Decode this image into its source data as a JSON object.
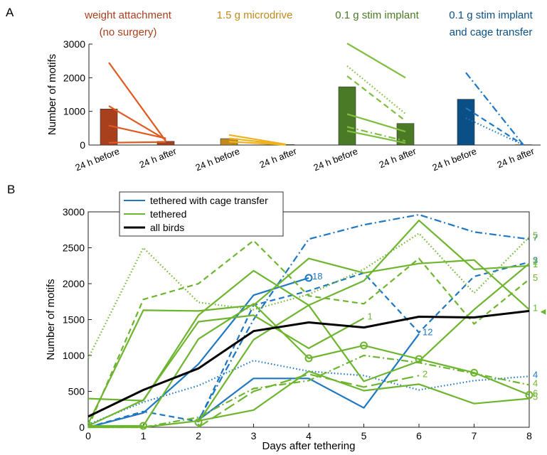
{
  "figure": {
    "panel_a_label": "A",
    "panel_b_label": "B",
    "colors": {
      "weight": "#a8401e",
      "weight_light": "#e05a20",
      "microdrive": "#c08a1c",
      "microdrive_light": "#efb21f",
      "stim": "#4a7a25",
      "stim_light": "#7fbe3f",
      "cage": "#0b4f87",
      "cage_light": "#1f78c1",
      "tethered": "#6eb52f",
      "all": "#000000"
    }
  },
  "chart_data": [
    {
      "type": "bar",
      "panel": "A",
      "ylabel": "Number of motifs",
      "ylim": [
        0,
        3000
      ],
      "yticks": [
        0,
        1000,
        2000,
        3000
      ],
      "groups": [
        {
          "title": [
            "weight attachment",
            "(no surgery)"
          ],
          "color_key": "weight",
          "categories": [
            "24 h before",
            "24 h after"
          ],
          "bar_values": [
            1070,
            110
          ],
          "lines": [
            {
              "before": 2450,
              "after": 120,
              "style": "solid"
            },
            {
              "before": 1160,
              "after": 160,
              "style": "solid"
            },
            {
              "before": 580,
              "after": 200,
              "style": "solid"
            },
            {
              "before": 70,
              "after": 90,
              "style": "solid"
            }
          ]
        },
        {
          "title": [
            "1.5 g microdrive"
          ],
          "color_key": "microdrive",
          "categories": [
            "24 h before",
            "24 h after"
          ],
          "bar_values": [
            190,
            15
          ],
          "lines": [
            {
              "before": 300,
              "after": 20,
              "style": "solid"
            },
            {
              "before": 200,
              "after": 10,
              "style": "solid"
            },
            {
              "before": 100,
              "after": 5,
              "style": "solid"
            }
          ]
        },
        {
          "title": [
            "0.1 g stim implant"
          ],
          "color_key": "stim",
          "categories": [
            "24 h before",
            "24 h after"
          ],
          "bar_values": [
            1730,
            640
          ],
          "lines": [
            {
              "before": 3020,
              "after": 2000,
              "style": "solid"
            },
            {
              "before": 2350,
              "after": 930,
              "style": "dotted"
            },
            {
              "before": 2050,
              "after": 720,
              "style": "dashed"
            },
            {
              "before": 920,
              "after": 400,
              "style": "solid"
            },
            {
              "before": 540,
              "after": 120,
              "style": "dashdot"
            },
            {
              "before": 420,
              "after": 60,
              "style": "solid"
            }
          ]
        },
        {
          "title": [
            "0.1 g stim implant",
            "and cage transfer"
          ],
          "color_key": "cage",
          "categories": [
            "24 h before",
            "24 h after"
          ],
          "bar_values": [
            1360,
            10
          ],
          "lines": [
            {
              "before": 2150,
              "after": 0,
              "style": "dashdot"
            },
            {
              "before": 1100,
              "after": 0,
              "style": "dashed"
            },
            {
              "before": 800,
              "after": 0,
              "style": "dotted"
            }
          ]
        }
      ]
    },
    {
      "type": "line",
      "panel": "B",
      "xlabel": "Days after tethering",
      "ylabel": "Number of motifs",
      "xlim": [
        0,
        8
      ],
      "ylim": [
        0,
        3000
      ],
      "xticks": [
        0,
        1,
        2,
        3,
        4,
        5,
        6,
        7,
        8
      ],
      "yticks": [
        0,
        500,
        1000,
        1500,
        2000,
        2500,
        3000
      ],
      "legend": {
        "placement": "top-left",
        "entries": [
          {
            "label": "tethered with cage transfer",
            "color_key": "cage_light"
          },
          {
            "label": "tethered",
            "color_key": "tethered"
          },
          {
            "label": "all birds",
            "color_key": "all"
          }
        ]
      },
      "series": [
        {
          "group": "all",
          "style": "solid",
          "width": 3,
          "x": [
            0,
            1,
            2,
            3,
            4,
            5,
            6,
            7,
            8
          ],
          "y": [
            150,
            520,
            820,
            1340,
            1460,
            1390,
            1540,
            1530,
            1620
          ]
        },
        {
          "group": "cage",
          "style": "solid",
          "x": [
            0,
            1,
            2,
            3,
            4
          ],
          "y": [
            0,
            200,
            880,
            1840,
            2080
          ],
          "end_marker": "circle",
          "end_label": "18"
        },
        {
          "group": "cage",
          "style": "solid",
          "x": [
            2,
            3,
            4,
            5,
            6
          ],
          "y": [
            100,
            680,
            680,
            270,
            1300
          ],
          "end_label": "12"
        },
        {
          "group": "cage",
          "style": "dashdot",
          "x": [
            2,
            3,
            4,
            5,
            6,
            7,
            8
          ],
          "y": [
            100,
            1500,
            2620,
            2820,
            2960,
            2720,
            2620
          ],
          "end_label": "7"
        },
        {
          "group": "cage",
          "style": "dashed",
          "x": [
            0,
            1,
            2,
            3,
            4,
            5,
            6,
            7,
            8
          ],
          "y": [
            0,
            220,
            80,
            1700,
            1900,
            2150,
            1320,
            2100,
            2300
          ],
          "end_label": "3"
        },
        {
          "group": "cage",
          "style": "dotted",
          "x": [
            0,
            1,
            2,
            3,
            4,
            5,
            6,
            7,
            8
          ],
          "y": [
            40,
            350,
            580,
            930,
            780,
            720,
            520,
            650,
            710
          ],
          "end_label": "4"
        },
        {
          "group": "tethered",
          "style": "dotted",
          "x": [
            0,
            1,
            2,
            3,
            4,
            5,
            6,
            7,
            8
          ],
          "y": [
            960,
            2500,
            1740,
            1640,
            1850,
            2200,
            2700,
            1870,
            2650
          ],
          "end_label": "5"
        },
        {
          "group": "tethered",
          "style": "dashed",
          "x": [
            0,
            1,
            2,
            3,
            4,
            5,
            6,
            7,
            8
          ],
          "y": [
            0,
            1780,
            2000,
            2600,
            1830,
            1720,
            2350,
            1440,
            2060
          ],
          "end_label": "5"
        },
        {
          "group": "tethered",
          "style": "solid",
          "x": [
            0,
            1,
            2,
            3,
            4,
            5,
            6,
            7,
            8
          ],
          "y": [
            400,
            370,
            1560,
            2180,
            1700,
            2040,
            2880,
            2200,
            2250
          ],
          "end_label": "1"
        },
        {
          "group": "tethered",
          "style": "solid",
          "x": [
            0,
            1,
            2,
            3,
            4,
            5,
            6,
            7,
            8
          ],
          "y": [
            50,
            1630,
            1620,
            1700,
            2350,
            2150,
            2280,
            2330,
            1640
          ],
          "end_label": "1"
        },
        {
          "group": "tethered",
          "style": "solid",
          "x": [
            0,
            1,
            2,
            3,
            4,
            5
          ],
          "y": [
            20,
            380,
            1470,
            1560,
            1100,
            1520
          ],
          "end_label": "1"
        },
        {
          "group": "tethered",
          "style": "solid",
          "x": [
            0,
            1,
            2,
            3,
            4,
            5,
            6,
            7,
            8
          ],
          "y": [
            20,
            20,
            1230,
            1720,
            960,
            1140,
            950,
            760,
            450
          ],
          "markers": [
            1,
            4,
            5,
            6,
            7,
            8
          ],
          "end_label": "6"
        },
        {
          "group": "tethered",
          "style": "solid",
          "x": [
            2,
            3,
            4,
            5,
            6,
            7,
            8
          ],
          "y": [
            70,
            1220,
            1700,
            640,
            920,
            1640,
            2280
          ],
          "markers": [
            2
          ],
          "end_label": "2"
        },
        {
          "group": "tethered",
          "style": "dashdot",
          "x": [
            0,
            1,
            2,
            3,
            4,
            5,
            6,
            7,
            8
          ],
          "y": [
            0,
            0,
            140,
            540,
            650,
            1000,
            900,
            750,
            590
          ],
          "end_label": "4"
        },
        {
          "group": "tethered",
          "style": "solid",
          "x": [
            0,
            1,
            2,
            3,
            4,
            5,
            6,
            7,
            8
          ],
          "y": [
            0,
            0,
            90,
            240,
            780,
            510,
            600,
            330,
            400
          ],
          "end_label": "5"
        },
        {
          "group": "tethered",
          "style": "longdash",
          "x": [
            2,
            3,
            4,
            5,
            6
          ],
          "y": [
            0,
            500,
            740,
            560,
            720
          ],
          "end_label": "2"
        }
      ],
      "annotations": [
        {
          "type": "arrow",
          "y": 1620,
          "text": "◄"
        }
      ]
    }
  ]
}
